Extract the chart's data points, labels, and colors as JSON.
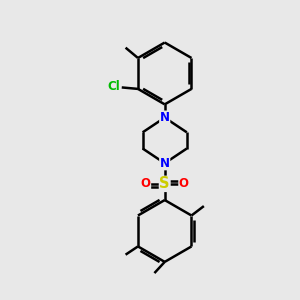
{
  "background_color": "#e8e8e8",
  "bond_color": "#000000",
  "bond_width": 1.8,
  "atom_colors": {
    "N": "#0000ff",
    "S": "#cccc00",
    "O": "#ff0000",
    "Cl": "#00bb00",
    "C": "#000000"
  },
  "font_size": 8.5,
  "figsize": [
    3.0,
    3.0
  ],
  "dpi": 100
}
